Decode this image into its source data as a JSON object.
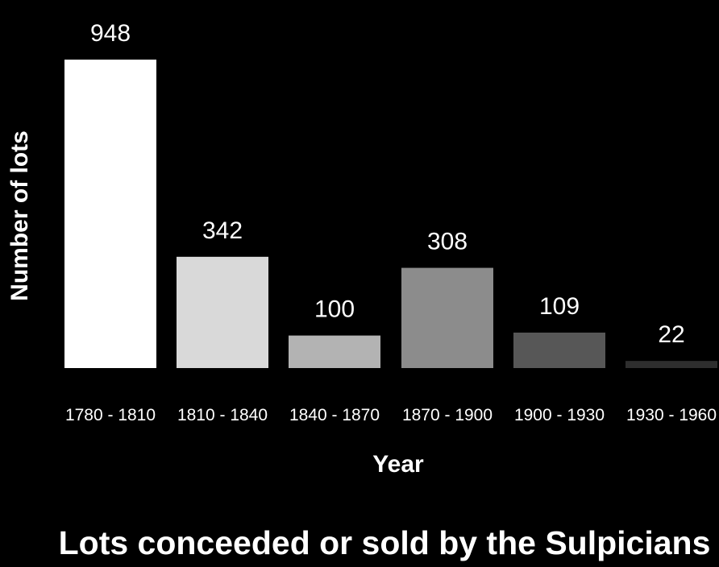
{
  "chart_data": {
    "type": "bar",
    "title": "Lots conceeded or sold by the Sulpicians",
    "xlabel": "Year",
    "ylabel": "Number of lots",
    "categories": [
      "1780 - 1810",
      "1810 - 1840",
      "1840 - 1870",
      "1870 - 1900",
      "1900 - 1930",
      "1930 - 1960"
    ],
    "values": [
      948,
      342,
      100,
      308,
      109,
      22
    ],
    "value_labels": [
      "948",
      "342",
      "100",
      "308",
      "109",
      "22"
    ],
    "bar_colors": [
      "#ffffff",
      "#d9d9d9",
      "#b3b3b3",
      "#8c8c8c",
      "#575757",
      "#2e2e2e"
    ],
    "background": "#000000",
    "ylim": [
      0,
      948
    ],
    "grid": false,
    "legend": "none"
  }
}
